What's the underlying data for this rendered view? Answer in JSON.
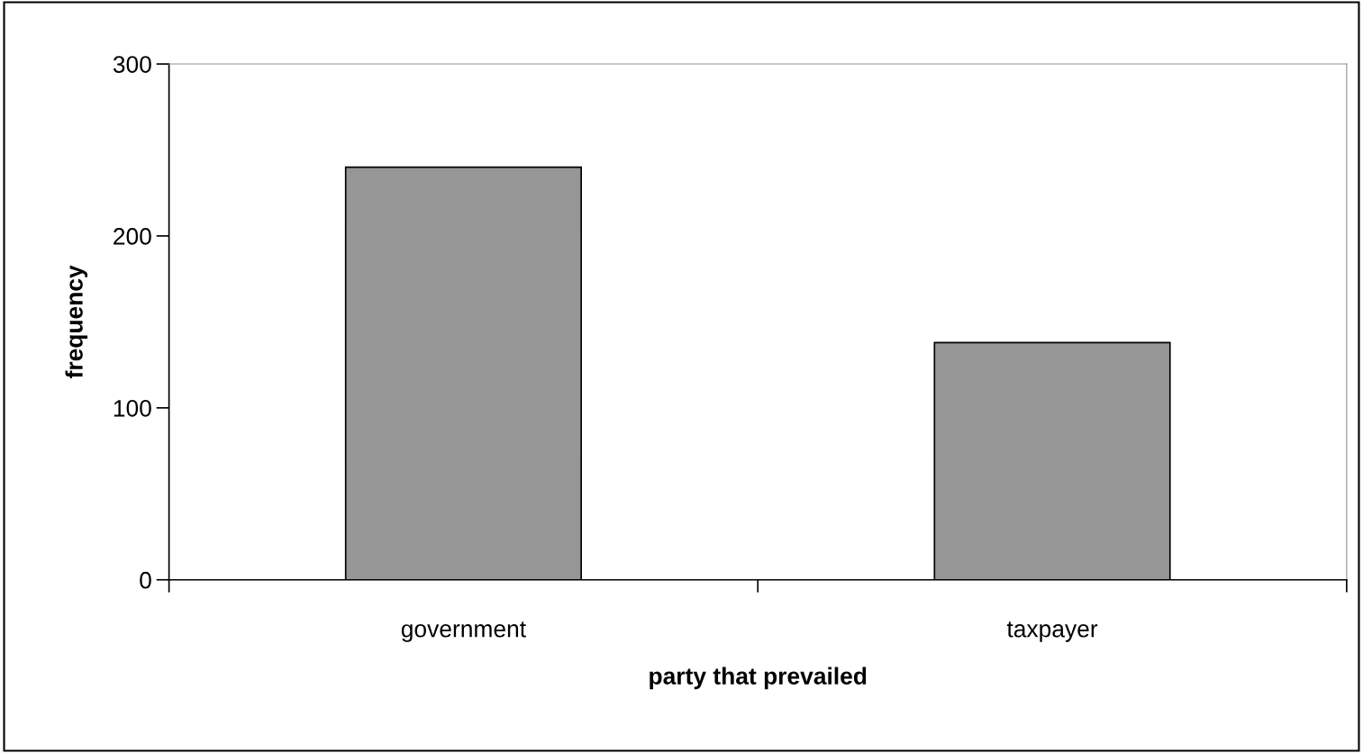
{
  "chart_data": {
    "type": "bar",
    "xlabel": "party that prevailed",
    "ylabel": "frequency",
    "categories": [
      "government",
      "taxpayer"
    ],
    "values": [
      240,
      138
    ],
    "color": "#969696",
    "ylim": [
      0,
      300
    ],
    "yticks": [
      0,
      100,
      200,
      300
    ],
    "grid": false,
    "legend": false
  }
}
